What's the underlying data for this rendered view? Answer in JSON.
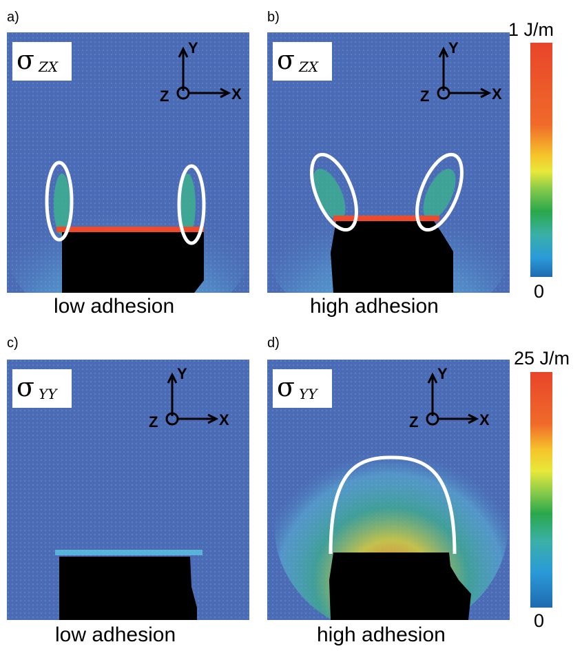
{
  "panels": [
    {
      "letter": "a)",
      "sigma": "σ",
      "subscript": "ZX",
      "caption": "low adhesion",
      "axes": {
        "x": "X",
        "y": "Y",
        "z": "Z"
      }
    },
    {
      "letter": "b)",
      "sigma": "σ",
      "subscript": "ZX",
      "caption": "high adhesion",
      "axes": {
        "x": "X",
        "y": "Y",
        "z": "Z"
      }
    },
    {
      "letter": "c)",
      "sigma": "σ",
      "subscript": "YY",
      "caption": "low adhesion",
      "axes": {
        "x": "X",
        "y": "Y",
        "z": "Z"
      }
    },
    {
      "letter": "d)",
      "sigma": "σ",
      "subscript": "YY",
      "caption": "high adhesion",
      "axes": {
        "x": "X",
        "y": "Y",
        "z": "Z"
      }
    }
  ],
  "colorbars": [
    {
      "max_label": "1 J/m",
      "min_label": "0"
    },
    {
      "max_label": "25 J/m",
      "min_label": "0"
    }
  ],
  "colors": {
    "background": "#4a6bb5",
    "solid": "#000000",
    "highlight": "#ffffff"
  }
}
